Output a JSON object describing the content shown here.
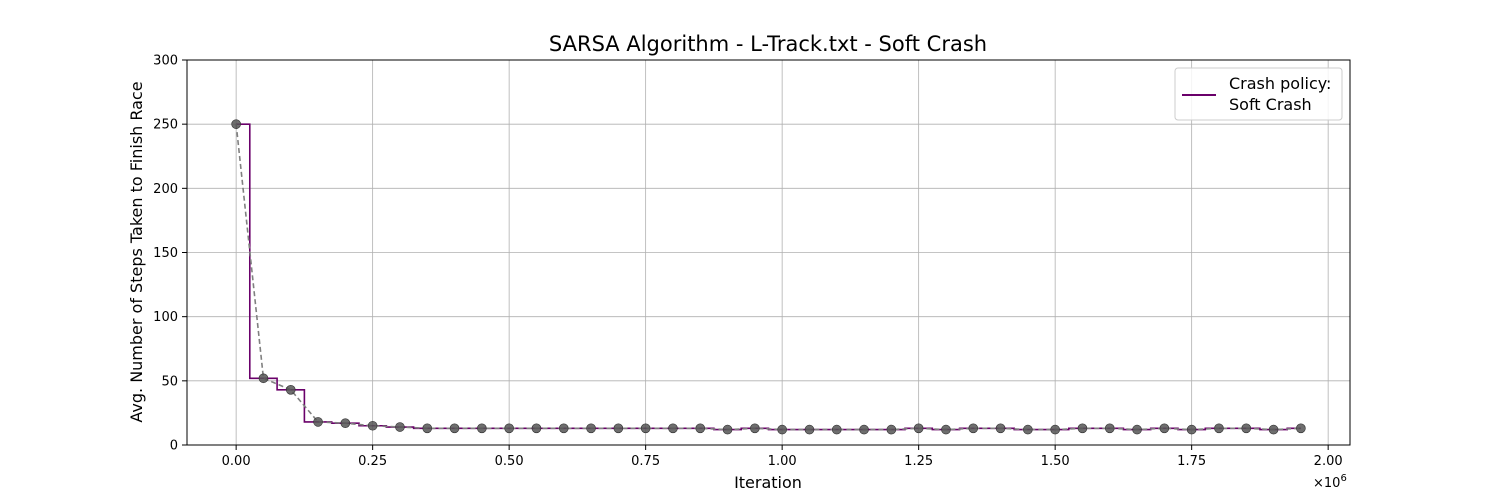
{
  "chart_data": {
    "type": "line",
    "title": "SARSA Algorithm - L-Track.txt - Soft Crash",
    "xlabel": "Iteration",
    "ylabel": "Avg. Number of Steps Taken to Finish Race",
    "x_scale_label": "×10",
    "x_scale_exponent": "6",
    "xlim": [
      -0.09,
      2.04
    ],
    "ylim": [
      0,
      300
    ],
    "x_ticks": [
      0.0,
      0.25,
      0.5,
      0.75,
      1.0,
      1.25,
      1.5,
      1.75,
      2.0
    ],
    "x_tick_labels": [
      "0.00",
      "0.25",
      "0.50",
      "0.75",
      "1.00",
      "1.25",
      "1.50",
      "1.75",
      "2.00"
    ],
    "y_ticks": [
      0,
      50,
      100,
      150,
      200,
      250,
      300
    ],
    "y_tick_labels": [
      "0",
      "50",
      "100",
      "150",
      "200",
      "250",
      "300"
    ],
    "grid": true,
    "legend_position": "top-right",
    "step_series": {
      "name": "Crash policy:\nSoft Crash",
      "color": "#6a006a",
      "x": [
        0.0,
        0.05,
        0.1,
        0.15,
        0.2,
        0.25,
        0.3,
        0.35,
        0.4,
        0.45,
        0.5,
        0.55,
        0.6,
        0.65,
        0.7,
        0.75,
        0.8,
        0.85,
        0.9,
        0.95,
        1.0,
        1.05,
        1.1,
        1.15,
        1.2,
        1.25,
        1.3,
        1.35,
        1.4,
        1.45,
        1.5,
        1.55,
        1.6,
        1.65,
        1.7,
        1.75,
        1.8,
        1.85,
        1.9,
        1.95
      ],
      "y": [
        250,
        52,
        43,
        18,
        17,
        15,
        14,
        13,
        13,
        13,
        13,
        13,
        13,
        13,
        13,
        13,
        13,
        13,
        12,
        13,
        12,
        12,
        12,
        12,
        12,
        13,
        12,
        13,
        13,
        12,
        12,
        13,
        13,
        12,
        13,
        12,
        13,
        13,
        12,
        13
      ]
    },
    "point_series": {
      "color": "#555555",
      "line_color": "#808080",
      "x": [
        0.0,
        0.05,
        0.1,
        0.15,
        0.2,
        0.25,
        0.3,
        0.35,
        0.4,
        0.45,
        0.5,
        0.55,
        0.6,
        0.65,
        0.7,
        0.75,
        0.8,
        0.85,
        0.9,
        0.95,
        1.0,
        1.05,
        1.1,
        1.15,
        1.2,
        1.25,
        1.3,
        1.35,
        1.4,
        1.45,
        1.5,
        1.55,
        1.6,
        1.65,
        1.7,
        1.75,
        1.8,
        1.85,
        1.9,
        1.95
      ],
      "y": [
        250,
        52,
        43,
        18,
        17,
        15,
        14,
        13,
        13,
        13,
        13,
        13,
        13,
        13,
        13,
        13,
        13,
        13,
        12,
        13,
        12,
        12,
        12,
        12,
        12,
        13,
        12,
        13,
        13,
        12,
        12,
        13,
        13,
        12,
        13,
        12,
        13,
        13,
        12,
        13
      ]
    }
  }
}
